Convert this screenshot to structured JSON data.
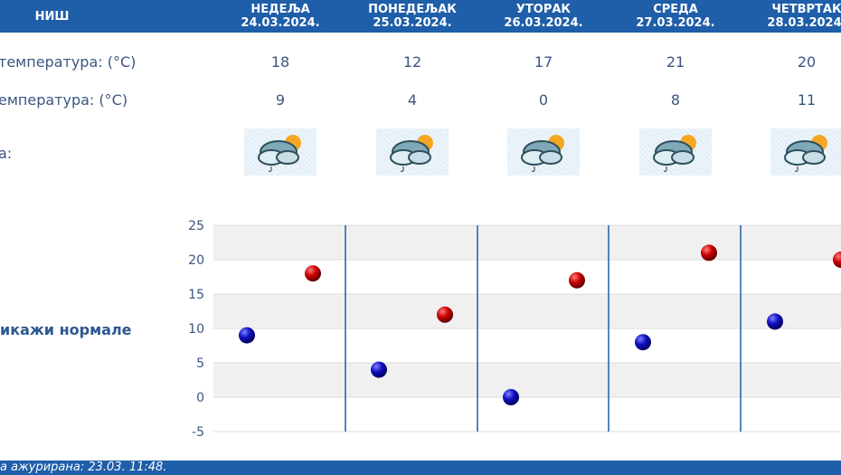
{
  "header": {
    "city": "НИШ",
    "days": [
      {
        "name": "НЕДЕЉА",
        "date": "24.03.2024.",
        "max": "18",
        "min": "9",
        "icon": "partly-cloudy-rain-icon"
      },
      {
        "name": "ПОНЕДЕЉАК",
        "date": "25.03.2024.",
        "max": "12",
        "min": "4",
        "icon": "partly-cloudy-rain-icon"
      },
      {
        "name": "УТОРАК",
        "date": "26.03.2024.",
        "max": "17",
        "min": "0",
        "icon": "partly-cloudy-rain-icon"
      },
      {
        "name": "СРЕДА",
        "date": "27.03.2024.",
        "max": "21",
        "min": "8",
        "icon": "partly-cloudy-rain-icon"
      },
      {
        "name": "ЧЕТВРТАК",
        "date": "28.03.2024.",
        "max": "20",
        "min": "11",
        "icon": "partly-cloudy-rain-icon"
      }
    ]
  },
  "rows": {
    "max_label": "температура: (°C)",
    "min_label": "емпература: (°C)",
    "icon_label": "а:"
  },
  "show_normals": "икажи нормале",
  "footer": "а ажурирана:  23.03. 11:48.",
  "chart_data": {
    "type": "scatter",
    "categories": [
      "24.03.2024.",
      "25.03.2024.",
      "26.03.2024.",
      "27.03.2024.",
      "28.03.2024."
    ],
    "series": [
      {
        "color": "#1010c0",
        "values": [
          9,
          4,
          0,
          8,
          11
        ]
      },
      {
        "color": "#cc0000",
        "values": [
          18,
          12,
          17,
          21,
          20
        ]
      }
    ],
    "yticks": [
      "25",
      "20",
      "15",
      "10",
      "5",
      "0",
      "-5"
    ],
    "ylim": [
      -5,
      25
    ],
    "grid": true
  }
}
